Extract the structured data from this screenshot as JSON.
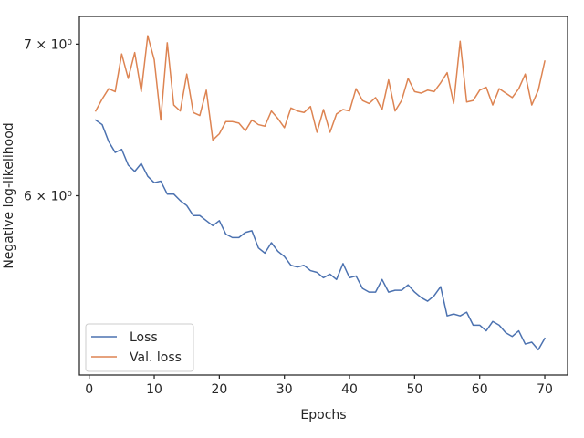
{
  "chart_data": {
    "type": "line",
    "xlabel": "Epochs",
    "ylabel": "Negative log-likelihood",
    "xlim": [
      -1.5,
      73.5
    ],
    "ylim": [
      5.0,
      7.2
    ],
    "yscale": "log",
    "xticks": [
      0,
      10,
      20,
      30,
      40,
      50,
      60,
      70
    ],
    "yticks": [
      {
        "value": 6,
        "label": "6 × 10⁰"
      },
      {
        "value": 7,
        "label": "7 × 10⁰"
      }
    ],
    "legend_position": "lower-left",
    "grid": false,
    "x": [
      1,
      2,
      3,
      4,
      5,
      6,
      7,
      8,
      9,
      10,
      11,
      12,
      13,
      14,
      15,
      16,
      17,
      18,
      19,
      20,
      21,
      22,
      23,
      24,
      25,
      26,
      27,
      28,
      29,
      30,
      31,
      32,
      33,
      34,
      35,
      36,
      37,
      38,
      39,
      40,
      41,
      42,
      43,
      44,
      45,
      46,
      47,
      48,
      49,
      50,
      51,
      52,
      53,
      54,
      55,
      56,
      57,
      58,
      59,
      60,
      61,
      62,
      63,
      64,
      65,
      66,
      67,
      68,
      69,
      70
    ],
    "series": [
      {
        "name": "Loss",
        "color": "#4c72b0",
        "values": [
          6.48,
          6.45,
          6.34,
          6.27,
          6.29,
          6.19,
          6.15,
          6.2,
          6.12,
          6.08,
          6.09,
          6.01,
          6.01,
          5.97,
          5.94,
          5.88,
          5.88,
          5.85,
          5.82,
          5.85,
          5.77,
          5.75,
          5.75,
          5.78,
          5.79,
          5.69,
          5.66,
          5.72,
          5.67,
          5.64,
          5.59,
          5.58,
          5.59,
          5.56,
          5.55,
          5.52,
          5.54,
          5.51,
          5.6,
          5.52,
          5.53,
          5.46,
          5.44,
          5.44,
          5.51,
          5.44,
          5.45,
          5.45,
          5.48,
          5.44,
          5.41,
          5.39,
          5.42,
          5.47,
          5.31,
          5.32,
          5.31,
          5.33,
          5.26,
          5.26,
          5.23,
          5.28,
          5.26,
          5.22,
          5.2,
          5.23,
          5.16,
          5.17,
          5.13,
          5.19
        ]
      },
      {
        "name": "Val. loss",
        "color": "#dd8452",
        "values": [
          6.54,
          6.62,
          6.69,
          6.67,
          6.93,
          6.76,
          6.94,
          6.67,
          7.06,
          6.89,
          6.48,
          7.01,
          6.58,
          6.54,
          6.79,
          6.53,
          6.51,
          6.68,
          6.35,
          6.39,
          6.47,
          6.47,
          6.46,
          6.41,
          6.48,
          6.45,
          6.44,
          6.54,
          6.49,
          6.43,
          6.56,
          6.54,
          6.53,
          6.57,
          6.4,
          6.55,
          6.4,
          6.52,
          6.55,
          6.54,
          6.69,
          6.61,
          6.59,
          6.63,
          6.55,
          6.75,
          6.54,
          6.61,
          6.76,
          6.67,
          6.66,
          6.68,
          6.67,
          6.73,
          6.8,
          6.59,
          7.02,
          6.6,
          6.61,
          6.68,
          6.7,
          6.58,
          6.69,
          6.66,
          6.63,
          6.69,
          6.79,
          6.58,
          6.68,
          6.88
        ]
      }
    ]
  }
}
